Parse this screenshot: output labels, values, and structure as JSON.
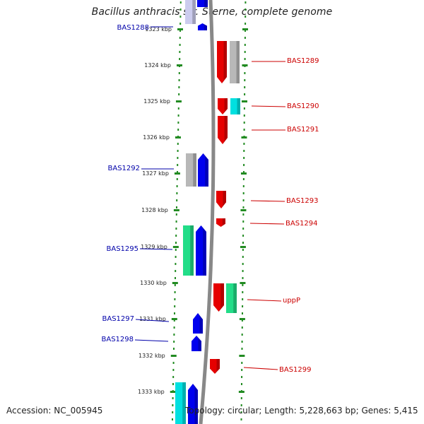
{
  "title": "Bacillus anthracis str. Sterne, complete genome",
  "accession": "Accession: NC_005945",
  "summary": "Topology: circular; Length: 5,228,663 bp; Genes: 5,415",
  "colors": {
    "strand_minus": "#e60000",
    "strand_plus": "#0000ee",
    "gray": "#b8b8b8",
    "cyan": "#00e0e0",
    "green": "#22dd88",
    "ruler_dots": "#228b22",
    "backbone": "#888888",
    "label_left": "#0000aa",
    "label_right": "#cc0000"
  },
  "ruler": [
    {
      "label": "1323 kbp"
    },
    {
      "label": "1324 kbp"
    },
    {
      "label": "1325 kbp"
    },
    {
      "label": "1326 kbp"
    },
    {
      "label": "1327 kbp"
    },
    {
      "label": "1328 kbp"
    },
    {
      "label": "1329 kbp"
    },
    {
      "label": "1330 kbp"
    },
    {
      "label": "1331 kbp"
    },
    {
      "label": "1332 kbp"
    },
    {
      "label": "1333 kbp"
    }
  ],
  "labels_left": [
    "BAS1288",
    "BAS1292",
    "BAS1295",
    "BAS1297",
    "BAS1298"
  ],
  "labels_right": [
    "BAS1289",
    "BAS1290",
    "BAS1291",
    "BAS1293",
    "BAS1294",
    "uppP",
    "BAS1299"
  ]
}
